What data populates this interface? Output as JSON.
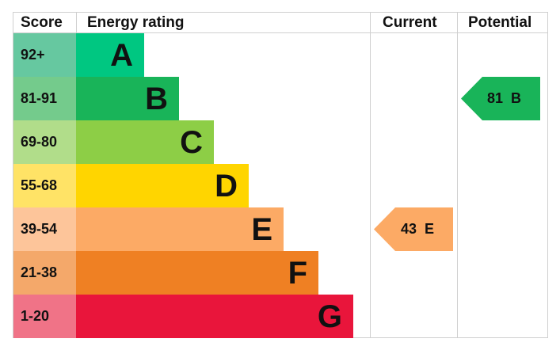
{
  "headers": {
    "score": "Score",
    "energy_rating": "Energy rating",
    "current": "Current",
    "potential": "Potential"
  },
  "bands": [
    {
      "letter": "A",
      "range": "92+",
      "bar_color": "#00c781",
      "score_color": "#66c8a0",
      "bar_end": 182
    },
    {
      "letter": "B",
      "range": "81-91",
      "bar_color": "#19b459",
      "score_color": "#74cb8c",
      "bar_end": 226
    },
    {
      "letter": "C",
      "range": "69-80",
      "bar_color": "#8dce46",
      "score_color": "#b1dd8a",
      "bar_end": 270
    },
    {
      "letter": "D",
      "range": "55-68",
      "bar_color": "#ffd500",
      "score_color": "#ffe366",
      "bar_end": 314
    },
    {
      "letter": "E",
      "range": "39-54",
      "bar_color": "#fcaa65",
      "score_color": "#fdc59a",
      "bar_end": 358
    },
    {
      "letter": "F",
      "range": "21-38",
      "bar_color": "#ef8023",
      "score_color": "#f4a86a",
      "bar_end": 402
    },
    {
      "letter": "G",
      "range": "1-20",
      "bar_color": "#e9153b",
      "score_color": "#f07387",
      "bar_end": 446
    }
  ],
  "current": {
    "value": "43",
    "letter": "E",
    "label": "43  E",
    "color": "#fcaa65"
  },
  "potential": {
    "value": "81",
    "letter": "B",
    "label": "81  B",
    "color": "#19b459"
  },
  "chart_data": {
    "type": "bar",
    "title": "Energy rating",
    "categories": [
      "A",
      "B",
      "C",
      "D",
      "E",
      "F",
      "G"
    ],
    "score_ranges": [
      "92+",
      "81-91",
      "69-80",
      "55-68",
      "39-54",
      "21-38",
      "1-20"
    ],
    "colors": [
      "#00c781",
      "#19b459",
      "#8dce46",
      "#ffd500",
      "#fcaa65",
      "#ef8023",
      "#e9153b"
    ],
    "series": [
      {
        "name": "Current",
        "value": 43,
        "band": "E"
      },
      {
        "name": "Potential",
        "value": 81,
        "band": "B"
      }
    ],
    "columns": [
      "Score",
      "Energy rating",
      "Current",
      "Potential"
    ]
  }
}
